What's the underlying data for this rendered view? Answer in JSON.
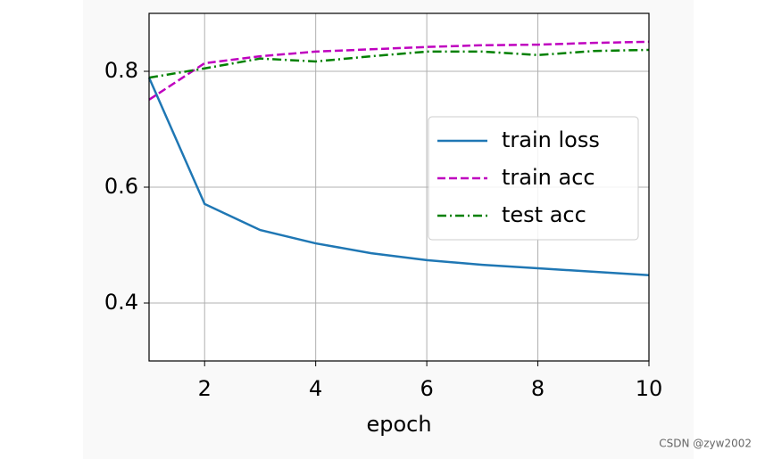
{
  "chart_data": {
    "type": "line",
    "xlabel": "epoch",
    "x": [
      1,
      2,
      3,
      4,
      5,
      6,
      7,
      8,
      9,
      10
    ],
    "series": [
      {
        "name": "train loss",
        "color": "#1f77b4",
        "linestyle": "solid",
        "values": [
          0.789,
          0.571,
          0.526,
          0.503,
          0.486,
          0.474,
          0.466,
          0.46,
          0.454,
          0.448
        ]
      },
      {
        "name": "train acc",
        "color": "#bf00bf",
        "linestyle": "dashed",
        "values": [
          0.751,
          0.814,
          0.826,
          0.834,
          0.838,
          0.842,
          0.845,
          0.846,
          0.849,
          0.851
        ]
      },
      {
        "name": "test acc",
        "color": "#008000",
        "linestyle": "dashdot",
        "values": [
          0.789,
          0.805,
          0.822,
          0.817,
          0.826,
          0.834,
          0.834,
          0.828,
          0.835,
          0.837
        ]
      }
    ],
    "xlim": [
      1,
      10
    ],
    "xticks": [
      2,
      4,
      6,
      8,
      10
    ],
    "ylim": [
      0.3,
      0.9
    ],
    "yticks": [
      0.4,
      0.6,
      0.8
    ],
    "grid": true,
    "legend": "center right"
  },
  "watermark": "CSDN @zyw2002"
}
